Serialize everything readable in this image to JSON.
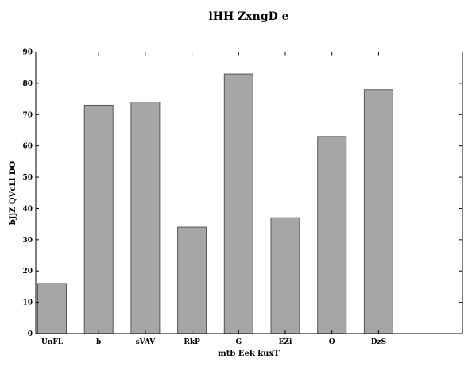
{
  "chart_data": {
    "type": "bar",
    "title": "lHH ZxngD e",
    "xlabel": "mtb Eek kuxT",
    "ylabel": "bJjZ QVcLl DO",
    "categories": [
      "UnFL",
      "b",
      "sVAV",
      "RkP",
      "G",
      "EZi",
      "O",
      "DzS"
    ],
    "values": [
      16,
      73,
      74,
      34,
      83,
      37,
      63,
      78
    ],
    "ylim": [
      0,
      90
    ],
    "yticks": [
      0,
      10,
      20,
      30,
      40,
      50,
      60,
      70,
      80,
      90
    ],
    "grid": false,
    "bar_color": "#a6a6a6"
  }
}
